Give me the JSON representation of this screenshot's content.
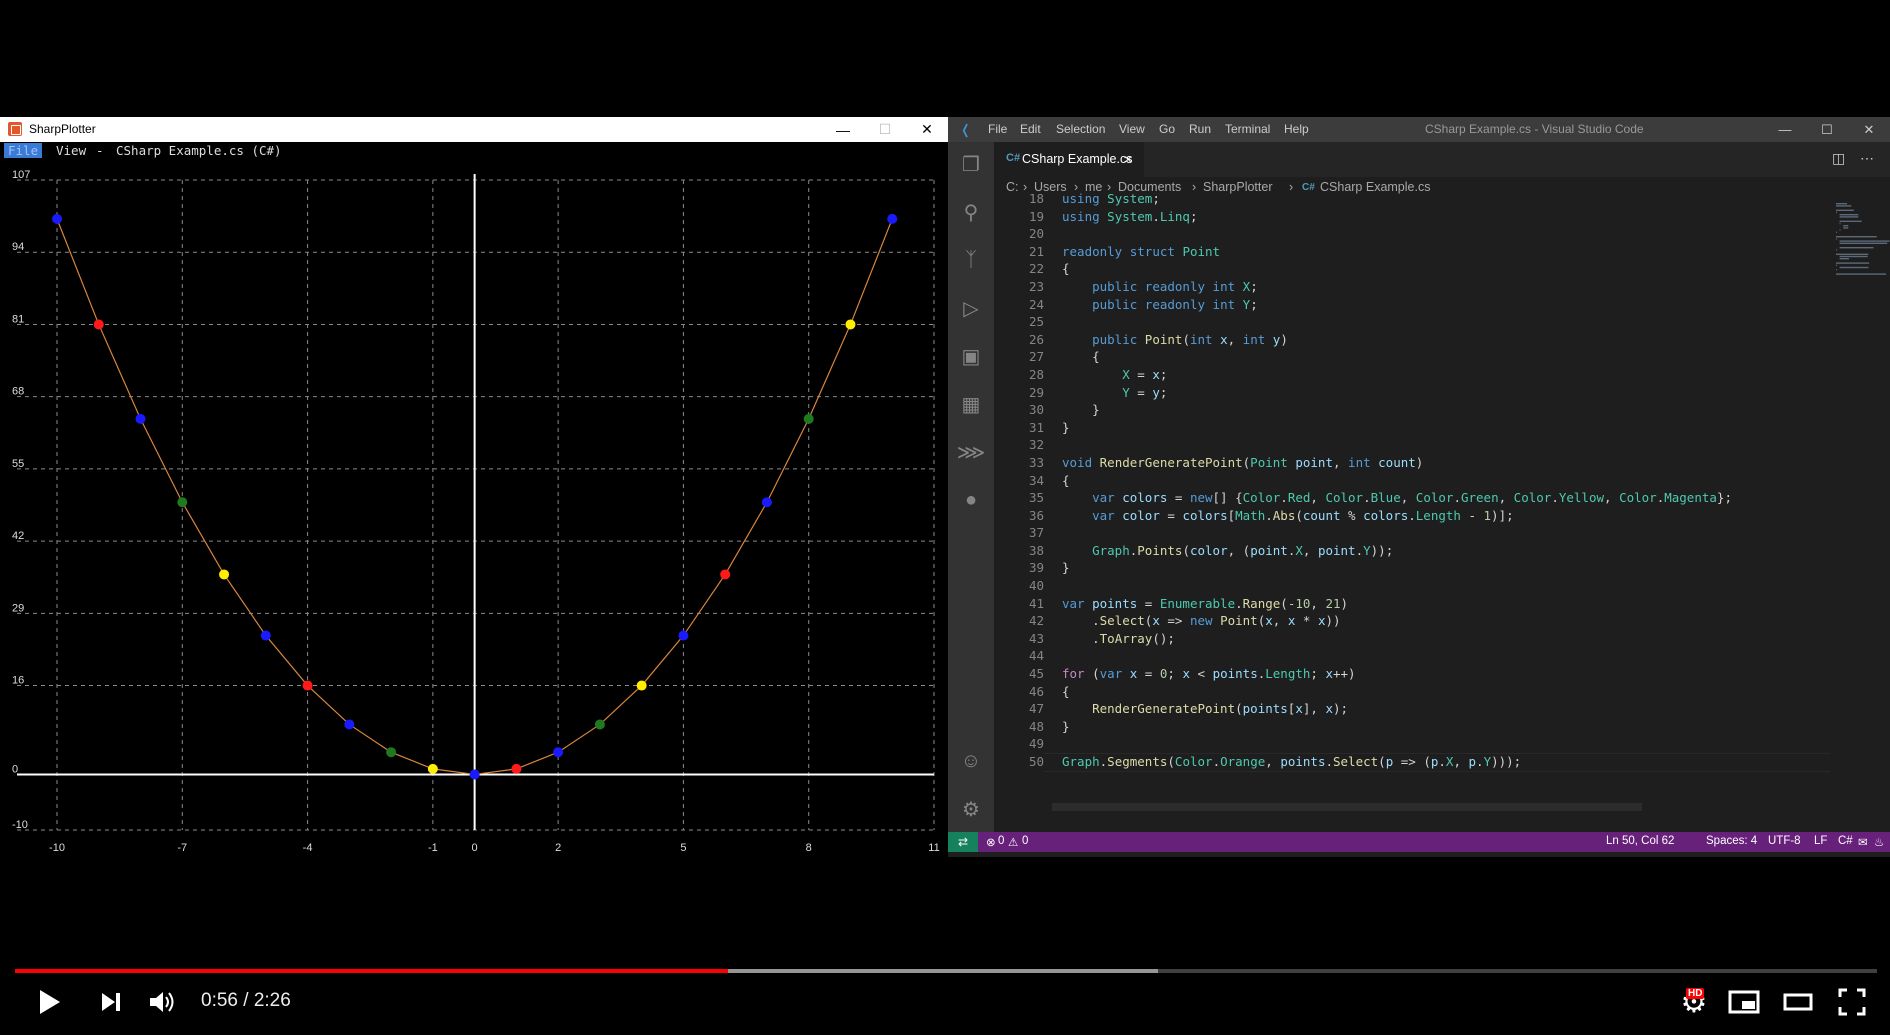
{
  "sharpplotter": {
    "title": "SharpPlotter",
    "menu": {
      "file": "File",
      "view": "View",
      "dash": "-",
      "document": "CSharp Example.cs (C#)"
    },
    "colors": {
      "background": "#000000",
      "grid": "#8a8a8a",
      "axis": "#ffffff",
      "segment": "#d9863c"
    }
  },
  "chart_data": {
    "type": "scatter",
    "x_ticks": [
      -10,
      -7,
      -4,
      -1,
      0,
      2,
      5,
      8,
      11
    ],
    "y_ticks": [
      -10,
      0,
      16,
      29,
      42,
      55,
      68,
      81,
      94,
      107
    ],
    "xlim": [
      -10,
      11
    ],
    "ylim": [
      -10,
      107
    ],
    "grid": true,
    "line_color": "#d9863c",
    "points": [
      {
        "x": -10,
        "y": 100,
        "color": "blue"
      },
      {
        "x": -9,
        "y": 81,
        "color": "red"
      },
      {
        "x": -8,
        "y": 64,
        "color": "blue"
      },
      {
        "x": -7,
        "y": 49,
        "color": "green"
      },
      {
        "x": -6,
        "y": 36,
        "color": "yellow"
      },
      {
        "x": -5,
        "y": 25,
        "color": "blue"
      },
      {
        "x": -4,
        "y": 16,
        "color": "red"
      },
      {
        "x": -3,
        "y": 9,
        "color": "blue"
      },
      {
        "x": -2,
        "y": 4,
        "color": "green"
      },
      {
        "x": -1,
        "y": 1,
        "color": "yellow"
      },
      {
        "x": 0,
        "y": 0,
        "color": "blue"
      },
      {
        "x": 1,
        "y": 1,
        "color": "red"
      },
      {
        "x": 2,
        "y": 4,
        "color": "blue"
      },
      {
        "x": 3,
        "y": 9,
        "color": "green"
      },
      {
        "x": 4,
        "y": 16,
        "color": "yellow"
      },
      {
        "x": 5,
        "y": 25,
        "color": "blue"
      },
      {
        "x": 6,
        "y": 36,
        "color": "red"
      },
      {
        "x": 7,
        "y": 49,
        "color": "blue"
      },
      {
        "x": 8,
        "y": 64,
        "color": "green"
      },
      {
        "x": 9,
        "y": 81,
        "color": "yellow"
      },
      {
        "x": 10,
        "y": 100,
        "color": "blue"
      }
    ]
  },
  "vscode": {
    "menu": [
      "File",
      "Edit",
      "Selection",
      "View",
      "Go",
      "Run",
      "Terminal",
      "Help"
    ],
    "title": "CSharp Example.cs - Visual Studio Code",
    "tab": {
      "icon": "C#",
      "label": "CSharp Example.cs",
      "close": "×"
    },
    "breadcrumb": [
      "C:",
      "Users",
      "me",
      "Documents",
      "SharpPlotter",
      "CSharp Example.cs"
    ],
    "breadcrumb_file_icon": "C#",
    "separator": "›",
    "activity_icons": [
      "explorer-icon",
      "search-icon",
      "source-control-icon",
      "run-debug-icon",
      "remote-explorer-icon",
      "extensions-icon",
      "terminal-icon",
      "docker-icon"
    ],
    "status": {
      "errors": "0",
      "warnings": "0",
      "position": "Ln 50, Col 62",
      "spaces": "Spaces: 4",
      "encoding": "UTF-8",
      "eol": "LF",
      "language": "C#"
    },
    "colors": {
      "statusbar": "#68217a",
      "remote": "#16825d"
    }
  },
  "code": {
    "first_line": 18,
    "lines": [
      "using System;",
      "using System.Linq;",
      "",
      "readonly struct Point",
      "{",
      "    public readonly int X;",
      "    public readonly int Y;",
      "",
      "    public Point(int x, int y)",
      "    {",
      "        X = x;",
      "        Y = y;",
      "    }",
      "}",
      "",
      "void RenderGeneratePoint(Point point, int count)",
      "{",
      "    var colors = new[] {Color.Red, Color.Blue, Color.Green, Color.Yellow, Color.Magenta};",
      "    var color = colors[Math.Abs(count % colors.Length - 1)];",
      "",
      "    Graph.Points(color, (point.X, point.Y));",
      "}",
      "",
      "var points = Enumerable.Range(-10, 21)",
      "    .Select(x => new Point(x, x * x))",
      "    .ToArray();",
      "",
      "for (var x = 0; x < points.Length; x++)",
      "{",
      "    RenderGeneratePoint(points[x], x);",
      "}",
      "",
      "Graph.Segments(Color.Orange, points.Select(p => (p.X, p.Y)));"
    ]
  },
  "player": {
    "current_time": "0:56",
    "duration": "2:26",
    "time_separator": "/",
    "played_fraction": 0.383,
    "buffered_fraction": 0.614,
    "hd_badge": "HD",
    "icons": [
      "play-icon",
      "next-icon",
      "volume-icon",
      "settings-icon",
      "miniplayer-icon",
      "theater-icon",
      "fullscreen-icon"
    ]
  }
}
